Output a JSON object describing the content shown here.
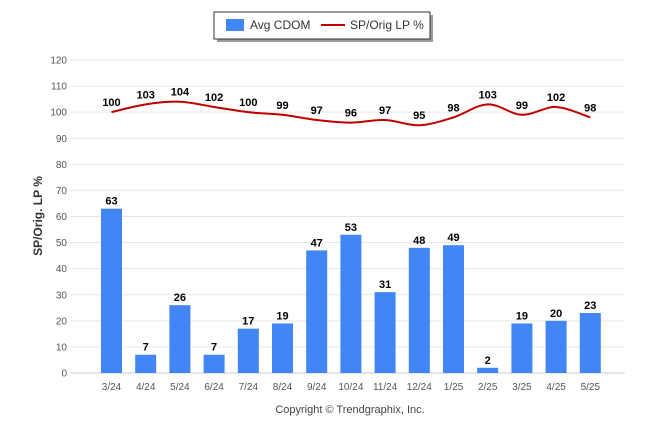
{
  "chart_data": {
    "type": "bar",
    "ylabel": "SP/Orig. LP %",
    "xlabel": "",
    "ylim": [
      0,
      120
    ],
    "yticks": [
      "0",
      "10",
      "20",
      "30",
      "40",
      "50",
      "60",
      "70",
      "80",
      "90",
      "100",
      "110",
      "120"
    ],
    "grid": true,
    "legend_position": "top-center",
    "categories": [
      "3/24",
      "4/24",
      "5/24",
      "6/24",
      "7/24",
      "8/24",
      "9/24",
      "10/24",
      "11/24",
      "12/24",
      "1/25",
      "2/25",
      "3/25",
      "4/25",
      "5/25"
    ],
    "series": [
      {
        "name": "Avg CDOM",
        "type": "bar",
        "color": "#4285f4",
        "values": [
          63,
          7,
          26,
          7,
          17,
          19,
          47,
          53,
          31,
          48,
          49,
          2,
          19,
          20,
          23
        ],
        "labels": [
          "63",
          "7",
          "26",
          "7",
          "17",
          "19",
          "47",
          "53",
          "31",
          "48",
          "49",
          "2",
          "19",
          "20",
          "23"
        ]
      },
      {
        "name": "SP/Orig LP %",
        "type": "line",
        "color": "#c00000",
        "values": [
          100,
          103,
          104,
          102,
          100,
          99,
          97,
          96,
          97,
          95,
          98,
          103,
          99,
          102,
          98
        ],
        "labels": [
          "100",
          "103",
          "104",
          "102",
          "100",
          "99",
          "97",
          "96",
          "97",
          "95",
          "98",
          "103",
          "99",
          "102",
          "98"
        ]
      }
    ]
  },
  "footer": {
    "credit": "Copyright © Trendgraphix, Inc."
  }
}
